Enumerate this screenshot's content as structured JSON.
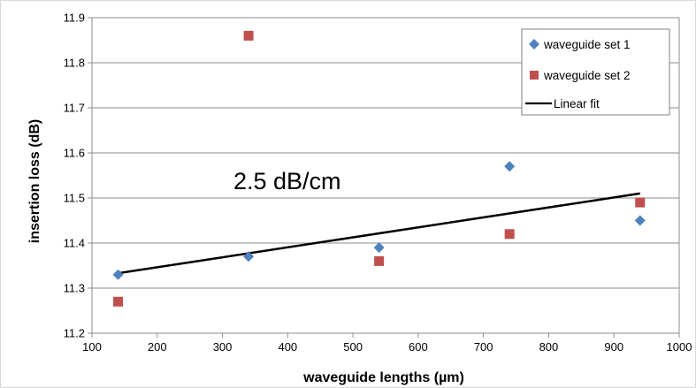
{
  "chart_data": {
    "type": "scatter",
    "xlabel": "waveguide lengths (µm)",
    "ylabel": "insertion loss (dB)",
    "xlim": [
      100,
      1000
    ],
    "ylim": [
      11.2,
      11.9
    ],
    "xticks": [
      "100",
      "200",
      "300",
      "400",
      "500",
      "600",
      "700",
      "800",
      "900",
      "1000"
    ],
    "yticks": [
      "11.2",
      "11.3",
      "11.4",
      "11.5",
      "11.6",
      "11.7",
      "11.8",
      "11.9"
    ],
    "grid": "horizontal",
    "legend_position": "top-right",
    "annotation": "2.5 dB/cm",
    "series": [
      {
        "name": "waveguide set 1",
        "marker": "diamond",
        "color": "#4F81BD",
        "x": [
          140,
          340,
          540,
          740,
          940
        ],
        "y": [
          11.33,
          11.37,
          11.39,
          11.57,
          11.45
        ]
      },
      {
        "name": "waveguide set 2",
        "marker": "square",
        "color": "#C0504D",
        "x": [
          140,
          340,
          540,
          740,
          940
        ],
        "y": [
          11.27,
          11.86,
          11.36,
          11.42,
          11.49
        ]
      }
    ],
    "fit": {
      "name": "Linear fit",
      "color": "#000000",
      "x": [
        140,
        940
      ],
      "y": [
        11.333,
        11.51
      ]
    }
  }
}
